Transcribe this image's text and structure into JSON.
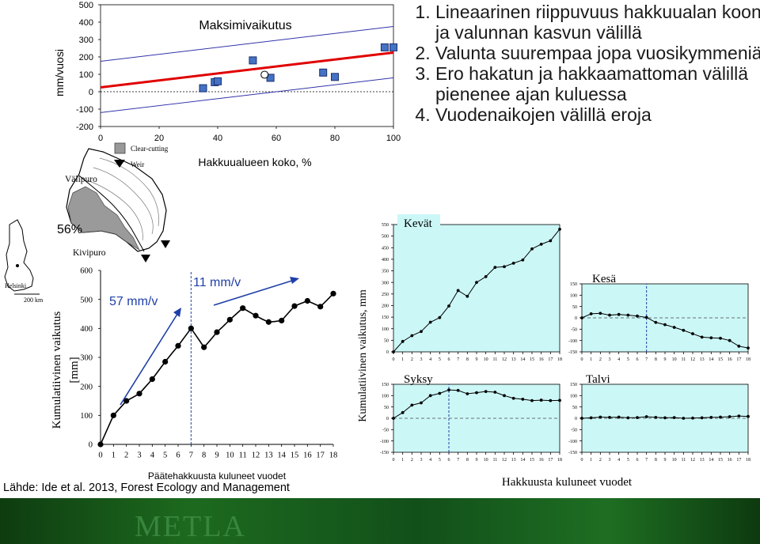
{
  "points": [
    "Lineaarinen riippuvuus hakkuualan koon ja valunnan kasvun välillä",
    "Valunta suurempaa jopa vuosikymmeniä",
    "Ero hakatun ja hakkaamattoman välillä pienenee ajan kuluessa",
    "Vuodenaikojen välillä eroja"
  ],
  "source": "Lähde: Ide et al. 2013, Forest Ecology and Management",
  "footer_logo": "METLA",
  "map": {
    "labels": {
      "valipuro": "Välipuro",
      "kivipuro": "Kivipuro",
      "percent": "56%",
      "helsinki": "Helsinki",
      "scale": "200 km"
    },
    "legend": {
      "clearcut": "Clear-cutting",
      "weir": "Weir"
    },
    "colors": {
      "clearcut": "#999999",
      "weir": "#000000"
    }
  },
  "annotations": {
    "rate_before": "57 mm/v",
    "rate_after": "11 mm/v"
  },
  "bottom_xlabel": "Hakkuusta kuluneet vuodet",
  "chart_data": [
    {
      "id": "max",
      "type": "scatter",
      "title": "Maksimivaikutus",
      "xlabel": "Hakkuualueen koko, %",
      "ylabel": "mm/vuosi",
      "xlim": [
        0,
        100
      ],
      "ylim": [
        -200,
        500
      ],
      "xticks": [
        0,
        20,
        40,
        60,
        80,
        100
      ],
      "yticks": [
        -200,
        -100,
        0,
        100,
        200,
        300,
        400,
        500
      ],
      "points": [
        [
          35,
          20
        ],
        [
          39,
          55
        ],
        [
          40,
          60
        ],
        [
          52,
          180
        ],
        [
          58,
          80
        ],
        [
          76,
          110
        ],
        [
          80,
          85
        ],
        [
          97,
          255
        ],
        [
          100,
          255
        ]
      ],
      "open_point": [
        56,
        98
      ],
      "fit": {
        "slope": 2.0,
        "intercept": 25
      },
      "upper": {
        "slope": 2.0,
        "intercept": 175
      },
      "lower": {
        "slope": 2.0,
        "intercept": -120
      },
      "colors": {
        "marker": "#4472c4",
        "fit": "#e00000",
        "band": "#3333aa"
      }
    },
    {
      "id": "cum",
      "type": "line",
      "title": "",
      "xlabel": "Päätehakkuusta kuluneet vuodet",
      "ylabel": "Kumulatiivinen vaikutus [mm]",
      "xlim": [
        0,
        18
      ],
      "ylim": [
        0,
        600
      ],
      "xticks": [
        0,
        1,
        2,
        3,
        4,
        5,
        6,
        7,
        8,
        9,
        10,
        11,
        12,
        13,
        14,
        15,
        16,
        17,
        18
      ],
      "yticks": [
        0,
        100,
        200,
        300,
        400,
        500,
        600
      ],
      "x": [
        0,
        0.5,
        1,
        1.5,
        2,
        2.5,
        3,
        3.5,
        4,
        4.5,
        5,
        5.5,
        6,
        6.5,
        7,
        7.5,
        8,
        8.5,
        9,
        9.5,
        10,
        10.5,
        11,
        11.5,
        12,
        12.5,
        13,
        13.5,
        14,
        14.5,
        15,
        15.5,
        16,
        16.5,
        17,
        17.5,
        18
      ],
      "y": [
        0,
        50,
        100,
        125,
        150,
        162,
        175,
        200,
        225,
        255,
        285,
        313,
        340,
        370,
        400,
        368,
        335,
        360,
        387,
        408,
        430,
        450,
        470,
        457,
        444,
        432,
        422,
        424,
        427,
        452,
        477,
        486,
        495,
        485,
        475,
        497,
        520
      ],
      "marker_x": [
        0,
        1,
        2,
        3,
        4,
        5,
        6,
        7,
        8,
        9,
        10,
        11,
        12,
        13,
        14,
        15,
        16,
        17,
        18
      ],
      "marker_y": [
        0,
        100,
        150,
        175,
        225,
        285,
        340,
        400,
        335,
        387,
        430,
        470,
        444,
        422,
        427,
        477,
        495,
        475,
        520
      ],
      "vline": 7
    },
    {
      "id": "spring",
      "type": "line",
      "title": "Kevät",
      "ylabel": "Kumulatiivinen vaikutus, mm",
      "xlim": [
        0,
        18
      ],
      "ylim": [
        0,
        550
      ],
      "xticks": [
        0,
        1,
        2,
        3,
        4,
        5,
        6,
        7,
        8,
        9,
        10,
        11,
        12,
        13,
        14,
        15,
        16,
        17,
        18
      ],
      "yticks": [
        0,
        50,
        100,
        150,
        200,
        250,
        300,
        350,
        400,
        450,
        500,
        550
      ],
      "x": [
        0,
        1,
        2,
        3,
        4,
        5,
        6,
        7,
        8,
        9,
        10,
        11,
        12,
        13,
        14,
        15,
        16,
        17,
        18
      ],
      "y": [
        0,
        45,
        70,
        88,
        128,
        148,
        198,
        265,
        240,
        300,
        325,
        365,
        368,
        383,
        397,
        445,
        465,
        480,
        530
      ]
    },
    {
      "id": "summer",
      "type": "line",
      "title": "Kesä",
      "xlim": [
        0,
        18
      ],
      "ylim": [
        -150,
        150
      ],
      "xticks": [
        0,
        1,
        2,
        3,
        4,
        5,
        6,
        7,
        8,
        9,
        10,
        11,
        12,
        13,
        14,
        15,
        16,
        17,
        18
      ],
      "yticks": [
        -150,
        -100,
        -50,
        0,
        50,
        100,
        150
      ],
      "x": [
        0,
        1,
        2,
        3,
        4,
        5,
        6,
        7,
        8,
        9,
        10,
        11,
        12,
        13,
        14,
        15,
        16,
        17,
        18
      ],
      "y": [
        0,
        18,
        20,
        12,
        15,
        12,
        8,
        2,
        -20,
        -30,
        -42,
        -55,
        -70,
        -85,
        -88,
        -90,
        -100,
        -125,
        -133
      ],
      "vline": 7
    },
    {
      "id": "autumn",
      "type": "line",
      "title": "Syksy",
      "xlim": [
        0,
        18
      ],
      "ylim": [
        -150,
        150
      ],
      "xticks": [
        0,
        1,
        2,
        3,
        4,
        5,
        6,
        7,
        8,
        9,
        10,
        11,
        12,
        13,
        14,
        15,
        16,
        17,
        18
      ],
      "yticks": [
        -150,
        -100,
        -50,
        0,
        50,
        100,
        150
      ],
      "x": [
        0,
        1,
        2,
        3,
        4,
        5,
        6,
        7,
        8,
        9,
        10,
        11,
        12,
        13,
        14,
        15,
        16,
        17,
        18
      ],
      "y": [
        0,
        25,
        58,
        68,
        100,
        110,
        125,
        123,
        108,
        113,
        118,
        115,
        100,
        88,
        84,
        78,
        80,
        78,
        79
      ],
      "vline": 6
    },
    {
      "id": "winter",
      "type": "line",
      "title": "Talvi",
      "xlim": [
        0,
        18
      ],
      "ylim": [
        -150,
        150
      ],
      "xticks": [
        0,
        1,
        2,
        3,
        4,
        5,
        6,
        7,
        8,
        9,
        10,
        11,
        12,
        13,
        14,
        15,
        16,
        17,
        18
      ],
      "yticks": [
        -150,
        -100,
        -50,
        0,
        50,
        100,
        150
      ],
      "x": [
        0,
        1,
        2,
        3,
        4,
        5,
        6,
        7,
        8,
        9,
        10,
        11,
        12,
        13,
        14,
        15,
        16,
        17,
        18
      ],
      "y": [
        0,
        2,
        5,
        4,
        5,
        2,
        3,
        7,
        4,
        2,
        3,
        0,
        1,
        2,
        4,
        5,
        7,
        10,
        8
      ]
    }
  ]
}
